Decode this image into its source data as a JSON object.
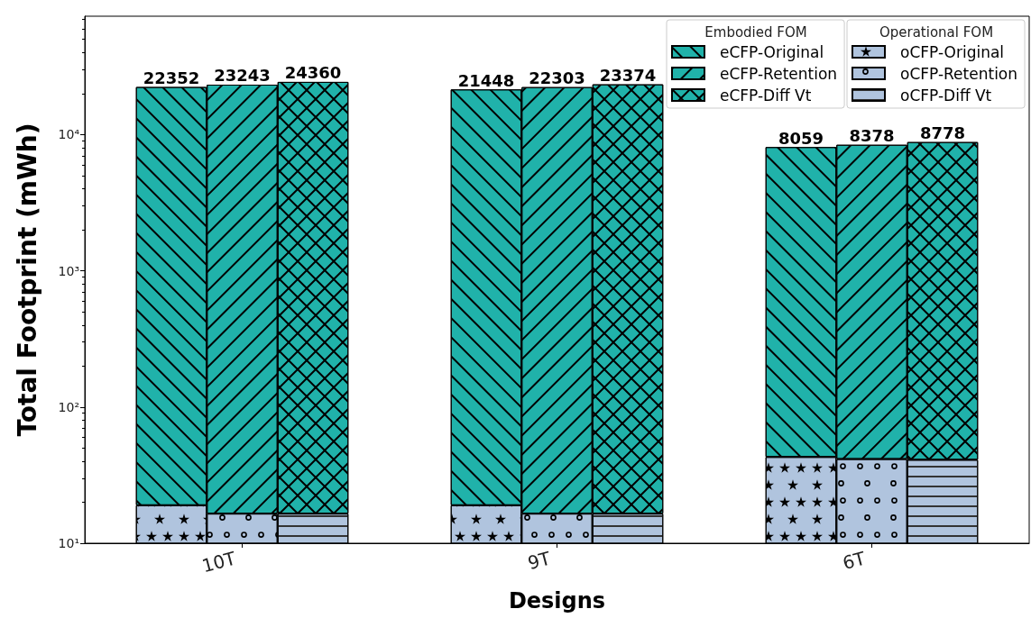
{
  "chart_data": {
    "type": "bar",
    "stacked": true,
    "log": true,
    "grid": false,
    "legend": "top right",
    "xlabel": "Designs",
    "ylabel": "Total Footprint (mWh)",
    "legend_title": [
      "Embodied FOM",
      "Operational FOM"
    ],
    "categories": [
      null,
      "10T",
      null,
      null,
      "9T",
      null,
      null,
      "6T",
      null
    ],
    "ylim": [
      10,
      74000
    ],
    "yticks": [
      {
        "value": 10,
        "label": "10¹"
      },
      {
        "value": 20,
        "label": null
      },
      {
        "value": 30,
        "label": null
      },
      {
        "value": 40,
        "label": null
      },
      {
        "value": 50,
        "label": null
      },
      {
        "value": 60,
        "label": null
      },
      {
        "value": 70,
        "label": null
      },
      {
        "value": 80,
        "label": null
      },
      {
        "value": 90,
        "label": null
      },
      {
        "value": 100,
        "label": "10²"
      },
      {
        "value": 200,
        "label": null
      },
      {
        "value": 300,
        "label": null
      },
      {
        "value": 400,
        "label": null
      },
      {
        "value": 500,
        "label": null
      },
      {
        "value": 600,
        "label": null
      },
      {
        "value": 700,
        "label": null
      },
      {
        "value": 800,
        "label": null
      },
      {
        "value": 900,
        "label": null
      },
      {
        "value": 1000,
        "label": "10³"
      },
      {
        "value": 2000,
        "label": null
      },
      {
        "value": 3000,
        "label": null
      },
      {
        "value": 4000,
        "label": null
      },
      {
        "value": 5000,
        "label": null
      },
      {
        "value": 6000,
        "label": null
      },
      {
        "value": 7000,
        "label": null
      },
      {
        "value": 8000,
        "label": null
      },
      {
        "value": 9000,
        "label": null
      },
      {
        "value": 10000,
        "label": "10⁴"
      },
      {
        "value": 20000,
        "label": null
      },
      {
        "value": 30000,
        "label": null
      },
      {
        "value": 40000,
        "label": null
      },
      {
        "value": 50000,
        "label": null
      },
      {
        "value": 60000,
        "label": null
      },
      {
        "value": 70000,
        "label": null
      }
    ],
    "series": [
      {
        "name": "oCFP-Original",
        "color": "#b0c4de",
        "values": [
          19,
          null,
          null,
          19,
          null,
          null,
          43,
          null,
          null
        ]
      },
      {
        "name": "oCFP-Retention",
        "color": "#b0c4de",
        "values": [
          null,
          16.5,
          null,
          null,
          16.5,
          null,
          null,
          41.5,
          null
        ]
      },
      {
        "name": "oCFP-Diff Vt",
        "color": "#b0c4de",
        "values": [
          null,
          null,
          16.5,
          null,
          null,
          16.5,
          null,
          null,
          41
        ]
      },
      {
        "name": "eCFP-Original",
        "color": "#20b2aa",
        "values": [
          22352,
          null,
          null,
          21448,
          null,
          null,
          8059,
          null,
          null
        ],
        "value_labels": [
          "22352",
          null,
          null,
          "21448",
          null,
          null,
          "8059",
          null,
          null
        ]
      },
      {
        "name": "eCFP-Retention",
        "color": "#20b2aa",
        "values": [
          null,
          23243,
          null,
          null,
          22303,
          null,
          null,
          8378,
          null
        ],
        "value_labels": [
          null,
          "23243",
          null,
          null,
          "22303",
          null,
          null,
          "8378",
          null
        ]
      },
      {
        "name": "eCFP-Diff Vt",
        "color": "#20b2aa",
        "values": [
          null,
          null,
          24360,
          null,
          null,
          23374,
          null,
          null,
          8778
        ],
        "value_labels": [
          null,
          null,
          "24360",
          null,
          null,
          "23374",
          null,
          null,
          "8778"
        ]
      }
    ]
  }
}
